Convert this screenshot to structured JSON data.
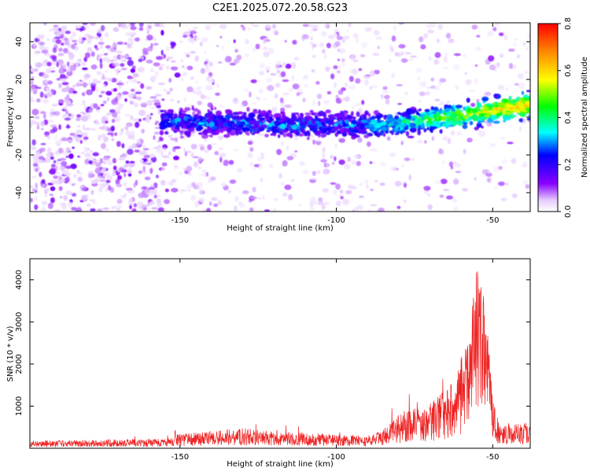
{
  "title": "C2E1.2025.072.20.58.G23",
  "chart_data": [
    {
      "type": "heatmap",
      "xlabel": "Height of straight line (km)",
      "ylabel": "Frequency (Hz)",
      "xlim": [
        -198,
        -38
      ],
      "ylim": [
        -50,
        50
      ],
      "xticks": [
        -150,
        -100,
        -50
      ],
      "yticks": [
        -40,
        -20,
        0,
        20,
        40
      ],
      "grid": false,
      "colorbar": {
        "label": "Normalized spectral amplitude",
        "range": [
          0.0,
          0.8
        ],
        "ticks": [
          "0.0",
          "0.2",
          "0.4",
          "0.6",
          "0.8"
        ],
        "colors": [
          "#ffffff",
          "#8800ff",
          "#0000ff",
          "#00ffff",
          "#00ff00",
          "#ffff00",
          "#ff0000"
        ]
      },
      "ridge": [
        {
          "x": -153,
          "y": -2
        },
        {
          "x": -120,
          "y": -4
        },
        {
          "x": -100,
          "y": -4
        },
        {
          "x": -84,
          "y": -4
        },
        {
          "x": -60,
          "y": 1
        },
        {
          "x": -40,
          "y": 6
        }
      ]
    },
    {
      "type": "line",
      "xlabel": "Height of straight line (km)",
      "ylabel": "SNR (10 * v/v)",
      "xlim": [
        -198,
        -38
      ],
      "ylim": [
        0,
        4500
      ],
      "xticks": [
        -150,
        -100,
        -50
      ],
      "yticks": [
        1000,
        2000,
        3000,
        4000
      ],
      "grid": false,
      "color": "#ee2222",
      "envelope": [
        {
          "x": -198,
          "y": 180
        },
        {
          "x": -155,
          "y": 230
        },
        {
          "x": -150,
          "y": 350
        },
        {
          "x": -140,
          "y": 400
        },
        {
          "x": -130,
          "y": 480
        },
        {
          "x": -120,
          "y": 400
        },
        {
          "x": -100,
          "y": 330
        },
        {
          "x": -90,
          "y": 300
        },
        {
          "x": -85,
          "y": 450
        },
        {
          "x": -80,
          "y": 800
        },
        {
          "x": -70,
          "y": 1100
        },
        {
          "x": -62,
          "y": 1600
        },
        {
          "x": -57,
          "y": 3000
        },
        {
          "x": -55,
          "y": 4450
        },
        {
          "x": -52,
          "y": 3300
        },
        {
          "x": -50,
          "y": 1200
        },
        {
          "x": -48,
          "y": 600
        },
        {
          "x": -38,
          "y": 600
        }
      ]
    }
  ]
}
